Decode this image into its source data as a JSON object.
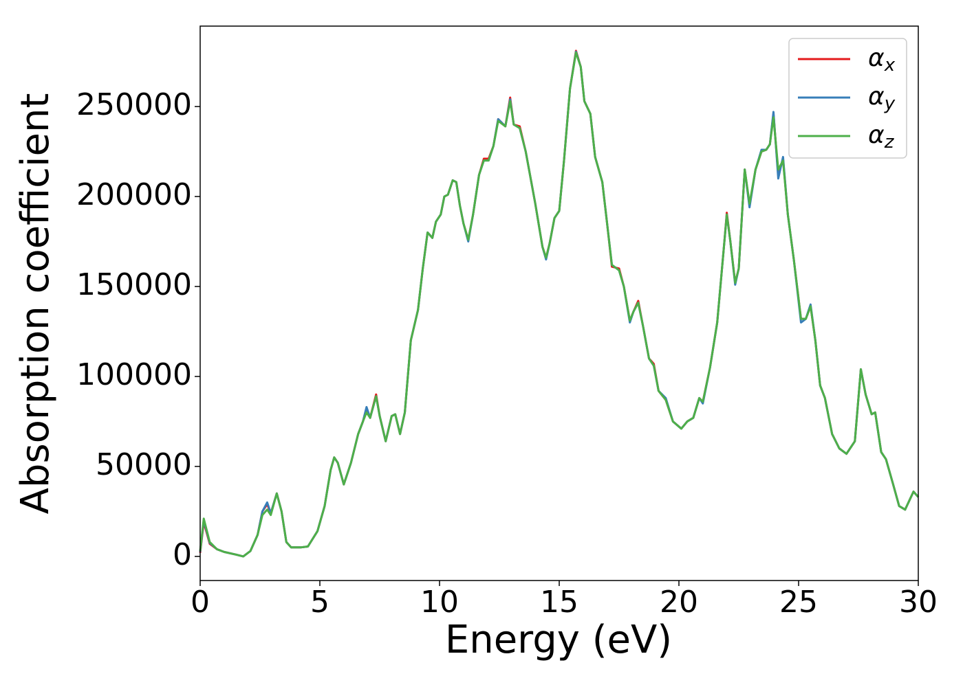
{
  "chart_data": {
    "type": "line",
    "xlabel": "Energy (eV)",
    "ylabel": "Absorption coefficient",
    "xlim": [
      0,
      30
    ],
    "xticks": [
      0,
      5,
      10,
      15,
      20,
      25,
      30
    ],
    "ylim": [
      -13400,
      294700
    ],
    "yticks": [
      0,
      50000,
      100000,
      150000,
      200000,
      250000
    ],
    "legend": "upper right",
    "x": [
      0,
      0.15,
      0.4,
      0.7,
      1.0,
      1.5,
      1.8,
      2.1,
      2.4,
      2.6,
      2.8,
      2.95,
      3.2,
      3.4,
      3.6,
      3.8,
      4.2,
      4.5,
      4.9,
      5.2,
      5.45,
      5.6,
      5.75,
      6.0,
      6.3,
      6.6,
      6.8,
      6.95,
      7.1,
      7.35,
      7.5,
      7.75,
      8.0,
      8.15,
      8.35,
      8.55,
      8.8,
      9.1,
      9.3,
      9.5,
      9.7,
      9.85,
      10.05,
      10.2,
      10.35,
      10.55,
      10.7,
      10.85,
      11.0,
      11.2,
      11.4,
      11.65,
      11.85,
      12.05,
      12.25,
      12.45,
      12.75,
      12.95,
      13.1,
      13.35,
      13.6,
      14.0,
      14.3,
      14.45,
      14.6,
      14.8,
      15.0,
      15.2,
      15.45,
      15.7,
      15.9,
      16.05,
      16.3,
      16.5,
      16.8,
      17.0,
      17.2,
      17.5,
      17.7,
      17.95,
      18.1,
      18.3,
      18.5,
      18.75,
      18.95,
      19.15,
      19.45,
      19.75,
      20.1,
      20.35,
      20.6,
      20.85,
      21.0,
      21.3,
      21.6,
      21.9,
      22.0,
      22.15,
      22.35,
      22.5,
      22.75,
      22.95,
      23.2,
      23.45,
      23.65,
      23.8,
      23.95,
      24.15,
      24.35,
      24.55,
      24.8,
      25.1,
      25.3,
      25.5,
      25.7,
      25.9,
      26.1,
      26.4,
      26.7,
      27.0,
      27.2,
      27.35,
      27.6,
      27.8,
      28.05,
      28.2,
      28.45,
      28.65,
      28.95,
      29.2,
      29.45,
      29.8,
      30.0
    ],
    "series": [
      {
        "name": "αx",
        "color": "#e41a1c",
        "values": [
          2000,
          19000,
          7000,
          4000,
          2500,
          1000,
          0,
          3000,
          12000,
          25000,
          29000,
          24000,
          35000,
          25000,
          8000,
          5000,
          5000,
          5500,
          14000,
          28000,
          48000,
          55000,
          52000,
          40000,
          52000,
          68000,
          75000,
          82000,
          77000,
          90000,
          78000,
          64000,
          78000,
          79000,
          68000,
          80000,
          120000,
          137000,
          160000,
          180000,
          177000,
          186000,
          190000,
          200000,
          201000,
          209000,
          208000,
          195000,
          185000,
          176000,
          190000,
          212000,
          221000,
          221000,
          228000,
          243000,
          239000,
          255000,
          240000,
          239000,
          225000,
          196000,
          172000,
          166000,
          174000,
          188000,
          192000,
          220000,
          260000,
          281000,
          272000,
          253000,
          246000,
          222000,
          208000,
          185000,
          161000,
          160000,
          150000,
          131000,
          136000,
          142000,
          128000,
          110000,
          107000,
          92000,
          87000,
          75000,
          71000,
          75000,
          77000,
          88000,
          86000,
          105000,
          130000,
          175000,
          191000,
          175000,
          152000,
          160000,
          215000,
          195000,
          215000,
          225000,
          226000,
          229000,
          246000,
          212000,
          221000,
          190000,
          165000,
          132000,
          132000,
          139000,
          120000,
          95000,
          88000,
          68000,
          60000,
          57000,
          61000,
          64000,
          104000,
          90000,
          79000,
          80000,
          58000,
          54000,
          40000,
          28000,
          26000,
          36000,
          33000
        ]
      },
      {
        "name": "αy",
        "color": "#377eb8",
        "values": [
          2500,
          20000,
          7500,
          4000,
          2500,
          1000,
          0,
          3000,
          12000,
          25000,
          30000,
          24000,
          35000,
          25000,
          8000,
          5000,
          5000,
          5500,
          14000,
          28000,
          48000,
          55000,
          52000,
          40000,
          52000,
          68000,
          75000,
          83000,
          77000,
          89000,
          78000,
          64000,
          78000,
          79000,
          68000,
          80000,
          120000,
          137000,
          160000,
          180000,
          177000,
          186000,
          190000,
          200000,
          201000,
          209000,
          208000,
          195000,
          185000,
          175000,
          190000,
          212000,
          220000,
          220000,
          228000,
          243000,
          239000,
          254000,
          240000,
          238000,
          225000,
          196000,
          172000,
          165000,
          174000,
          188000,
          192000,
          220000,
          260000,
          280500,
          272000,
          253000,
          246000,
          222000,
          208000,
          185000,
          162000,
          159000,
          150000,
          130000,
          136000,
          141000,
          128000,
          110000,
          106000,
          92000,
          88000,
          75000,
          71000,
          75000,
          77000,
          88000,
          85000,
          105000,
          130000,
          175000,
          190000,
          175000,
          151000,
          160000,
          215000,
          194000,
          215000,
          226000,
          226000,
          229000,
          247000,
          210000,
          222000,
          190000,
          165000,
          130000,
          132000,
          140000,
          120000,
          95000,
          88000,
          68000,
          60000,
          57000,
          61000,
          64000,
          104000,
          90000,
          79000,
          80000,
          58000,
          54000,
          40000,
          28000,
          26000,
          36000,
          33000
        ]
      },
      {
        "name": "αz",
        "color": "#4daf4a",
        "values": [
          3000,
          21000,
          8000,
          4000,
          2500,
          1000,
          0,
          3000,
          12000,
          23000,
          26000,
          23000,
          35000,
          25000,
          8000,
          5000,
          5000,
          5500,
          14000,
          28000,
          48000,
          55000,
          52000,
          40000,
          52000,
          68000,
          75000,
          80000,
          77000,
          89000,
          78000,
          64000,
          78000,
          79000,
          68000,
          80000,
          120000,
          137000,
          160000,
          180000,
          177000,
          186000,
          190000,
          200000,
          201000,
          209000,
          208000,
          195000,
          185000,
          176000,
          190000,
          212000,
          220000,
          220000,
          228000,
          242000,
          239000,
          253000,
          240000,
          238000,
          225000,
          196000,
          172000,
          166000,
          174000,
          188000,
          192000,
          220000,
          260000,
          280000,
          272000,
          253000,
          246000,
          222000,
          208000,
          185000,
          162000,
          159000,
          150000,
          131000,
          136000,
          141000,
          128000,
          110000,
          106000,
          92000,
          87000,
          75000,
          71000,
          75000,
          77000,
          88000,
          86000,
          105000,
          130000,
          175000,
          190000,
          175000,
          152000,
          160000,
          215000,
          196000,
          215000,
          225000,
          226000,
          229000,
          244000,
          215000,
          220000,
          190000,
          165000,
          132000,
          132000,
          139000,
          120000,
          95000,
          88000,
          68000,
          60000,
          57000,
          61000,
          64000,
          104000,
          90000,
          79000,
          80000,
          58000,
          54000,
          40000,
          28000,
          26000,
          36000,
          33000
        ]
      }
    ]
  }
}
